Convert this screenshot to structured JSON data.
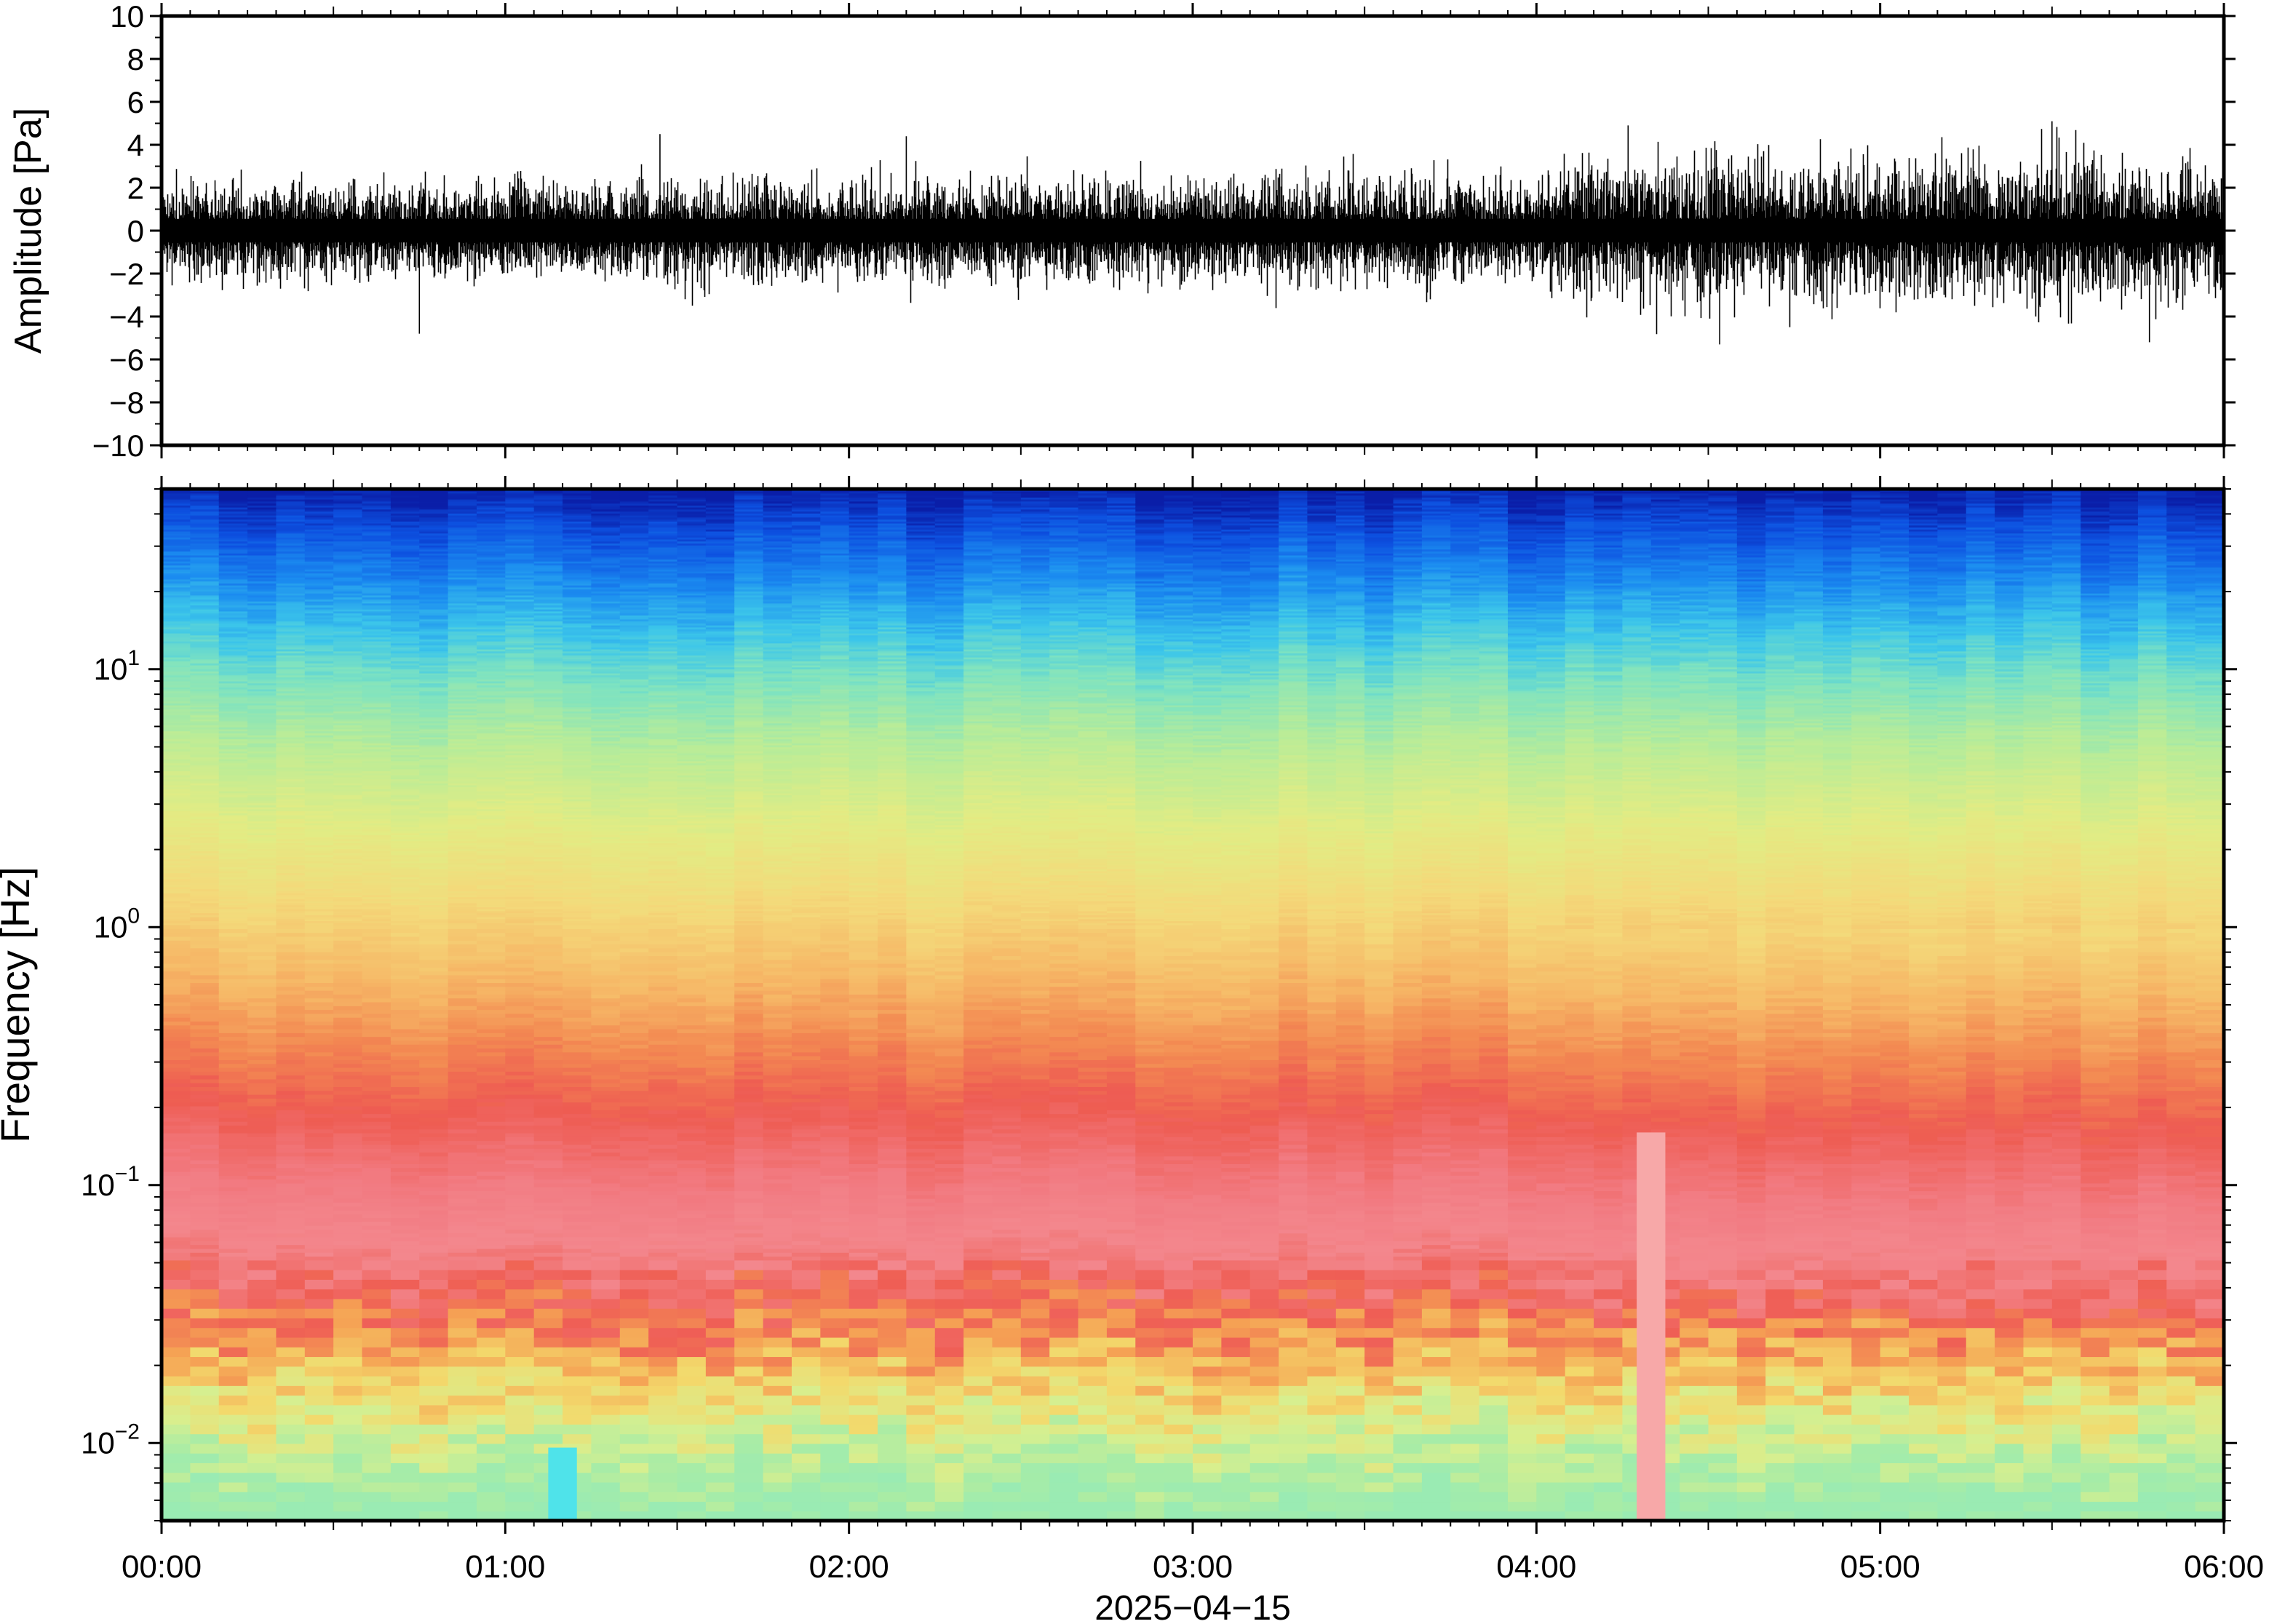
{
  "figure": {
    "date_label": "2025−04−15"
  },
  "chart_data": [
    {
      "type": "line",
      "panel": "waveform",
      "ylabel": "Amplitude [Pa]",
      "xlabel": "",
      "xlim": [
        "00:00",
        "06:00"
      ],
      "ylim": [
        -10,
        10
      ],
      "yticks": [
        10,
        8,
        6,
        4,
        2,
        0,
        -2,
        -4,
        -6,
        -8,
        -10
      ],
      "ytick_labels": [
        "10",
        "8",
        "6",
        "4",
        "2",
        "0",
        "−2",
        "−4",
        "−6",
        "−8",
        "−10"
      ],
      "grid": false,
      "series": [
        {
          "color": "#000000",
          "envelope_x_hours": [
            0.0,
            0.5,
            1.0,
            1.5,
            2.0,
            2.5,
            3.0,
            3.5,
            4.0,
            4.25,
            4.5,
            5.0,
            5.5,
            6.0
          ],
          "envelope_typical_pa": [
            1.5,
            1.5,
            1.5,
            1.7,
            1.6,
            1.8,
            1.7,
            1.7,
            1.8,
            2.6,
            2.5,
            2.3,
            2.6,
            2.3
          ],
          "peaks": [
            {
              "x": "00:45",
              "y": -4.8
            },
            {
              "x": "01:27",
              "y": 4.5
            },
            {
              "x": "02:10",
              "y": 4.4
            },
            {
              "x": "04:16",
              "y": 4.9
            },
            {
              "x": "04:32",
              "y": -5.3
            },
            {
              "x": "05:30",
              "y": 5.1
            },
            {
              "x": "05:47",
              "y": -5.2
            },
            {
              "x": "06:00",
              "y": -6.1
            }
          ]
        }
      ]
    },
    {
      "type": "heatmap",
      "panel": "spectrogram",
      "ylabel": "Frequency [Hz]",
      "xlabel": "2025−04−15",
      "x_ticks": [
        "00:00",
        "01:00",
        "02:00",
        "03:00",
        "04:00",
        "05:00",
        "06:00"
      ],
      "xlim": [
        "00:00",
        "06:00"
      ],
      "yscale": "log",
      "ylim": [
        0.005,
        50
      ],
      "yticks": [
        0.01,
        0.1,
        1,
        10
      ],
      "ytick_base": "10",
      "ytick_exponents": [
        "−2",
        "−1",
        "0",
        "1"
      ],
      "colormap": "jet-like (blue high freq / low power → cyan → green → yellow → orange → red → pink peak)",
      "colorbar": false,
      "grid": false,
      "time_bins": 72,
      "band_colors": [
        {
          "freq_hz": 50,
          "color": "#0a1ea8"
        },
        {
          "freq_hz": 35,
          "color": "#0d50e0"
        },
        {
          "freq_hz": 22,
          "color": "#1b8cf0"
        },
        {
          "freq_hz": 14,
          "color": "#3cc6ea"
        },
        {
          "freq_hz": 9,
          "color": "#7fe3c0"
        },
        {
          "freq_hz": 5,
          "color": "#b9ec98"
        },
        {
          "freq_hz": 2.5,
          "color": "#e2ec84"
        },
        {
          "freq_hz": 1.2,
          "color": "#f4d97a"
        },
        {
          "freq_hz": 0.6,
          "color": "#f6b766"
        },
        {
          "freq_hz": 0.35,
          "color": "#f38a52"
        },
        {
          "freq_hz": 0.2,
          "color": "#ee5c52"
        },
        {
          "freq_hz": 0.1,
          "color": "#f27b82"
        },
        {
          "freq_hz": 0.06,
          "color": "#f3878d"
        },
        {
          "freq_hz": 0.035,
          "color": "#ef5e55"
        },
        {
          "freq_hz": 0.024,
          "color": "#f5a154"
        },
        {
          "freq_hz": 0.016,
          "color": "#f3d96c"
        },
        {
          "freq_hz": 0.011,
          "color": "#d7ef8f"
        },
        {
          "freq_hz": 0.0075,
          "color": "#a8eca6"
        },
        {
          "freq_hz": 0.005,
          "color": "#9aebb3"
        }
      ],
      "notable": [
        {
          "x": "01:10",
          "freq_hz": 0.006,
          "color": "#4fe3ea"
        },
        {
          "x": "04:20",
          "freq_hz": 0.1,
          "color": "#f7a8a8"
        }
      ]
    }
  ]
}
